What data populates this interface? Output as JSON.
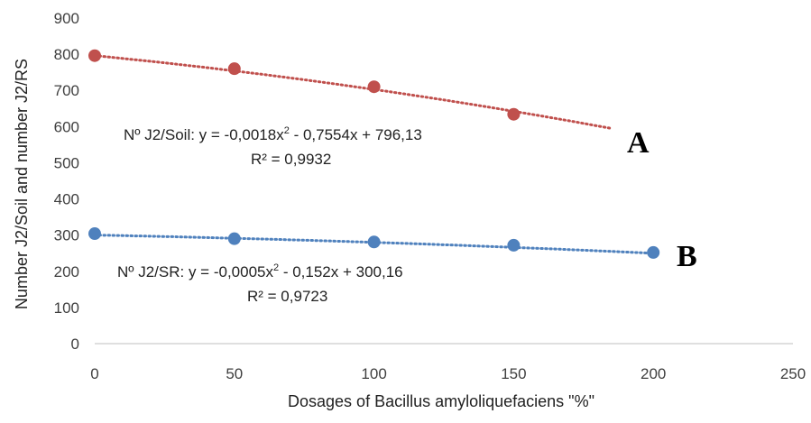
{
  "chart_data": {
    "type": "scatter",
    "xlabel": "Dosages of Bacillus amyloliquefaciens \"%\"",
    "ylabel": "Number  J2/Soil and number J2/RS",
    "xlim": [
      0,
      250
    ],
    "ylim": [
      0,
      900
    ],
    "x_ticks": [
      "0",
      "50",
      "100",
      "150",
      "200",
      "250"
    ],
    "y_ticks": [
      "0",
      "100",
      "200",
      "300",
      "400",
      "500",
      "600",
      "700",
      "800",
      "900"
    ],
    "grid": false,
    "series": [
      {
        "marker": "A",
        "color": "#C0504D",
        "trendline": "polynomial",
        "trend_x_end": 185,
        "coefficients": [
          -0.0018,
          -0.7554,
          796.13
        ],
        "equation_prefix": "Nº J2/Soil: y = -0,0018x",
        "equation_suffix": " - 0,7554x + 796,13",
        "r2": "R² = 0,9932",
        "points": [
          {
            "x": 0,
            "y": 796
          },
          {
            "x": 50,
            "y": 760
          },
          {
            "x": 100,
            "y": 710
          },
          {
            "x": 150,
            "y": 634
          }
        ]
      },
      {
        "marker": "B",
        "color": "#4F81BD",
        "trendline": "polynomial",
        "trend_x_end": 200,
        "coefficients": [
          -0.0005,
          -0.152,
          300.16
        ],
        "equation_prefix": "Nº J2/SR: y = -0,0005x",
        "equation_suffix": " - 0,152x + 300,16",
        "r2": "R² = 0,9723",
        "points": [
          {
            "x": 0,
            "y": 304
          },
          {
            "x": 50,
            "y": 290
          },
          {
            "x": 100,
            "y": 281
          },
          {
            "x": 150,
            "y": 272
          },
          {
            "x": 200,
            "y": 252
          }
        ]
      }
    ]
  }
}
